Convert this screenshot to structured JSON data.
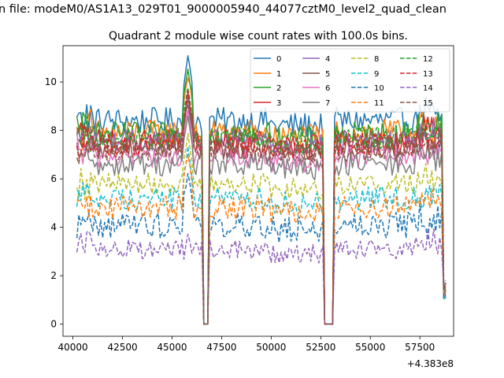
{
  "figure": {
    "suptitle": "n file: modeM0/AS1A13_029T01_9000005940_44077cztM0_level2_quad_clean",
    "offset_label": "+4.383e8"
  },
  "chart_data": {
    "type": "line",
    "title": "Quadrant 2 module wise count rates with 100.0s bins.",
    "xlabel": "",
    "ylabel": "",
    "xlim": [
      39500,
      59200
    ],
    "ylim": [
      -0.5,
      11.5
    ],
    "x_ticks": [
      40000,
      42500,
      45000,
      47500,
      50000,
      52500,
      55000,
      57500
    ],
    "x_tick_labels": [
      "40000",
      "42500",
      "45000",
      "47500",
      "50000",
      "52500",
      "55000",
      "57500"
    ],
    "y_ticks": [
      0,
      2,
      4,
      6,
      8,
      10
    ],
    "y_tick_labels": [
      "0",
      "2",
      "4",
      "6",
      "8",
      "10"
    ],
    "x_offset": 438300000,
    "x_start": 40200,
    "x_step": 100,
    "gaps": [
      [
        46600,
        46850
      ],
      [
        52700,
        53150
      ],
      [
        58700,
        58800
      ]
    ],
    "legend_position": "top-right",
    "legend_columns": 4,
    "series": [
      {
        "name": "0",
        "color": "#1f77b4",
        "dash": "solid",
        "level": 8.4,
        "noise": 0.25,
        "peak": 11.0
      },
      {
        "name": "1",
        "color": "#ff7f0e",
        "dash": "solid",
        "level": 7.9,
        "noise": 0.25,
        "peak": 10.3
      },
      {
        "name": "2",
        "color": "#2ca02c",
        "dash": "solid",
        "level": 7.8,
        "noise": 0.25,
        "peak": 10.6
      },
      {
        "name": "3",
        "color": "#d62728",
        "dash": "solid",
        "level": 7.5,
        "noise": 0.25,
        "peak": 9.6
      },
      {
        "name": "4",
        "color": "#9467bd",
        "dash": "solid",
        "level": 7.6,
        "noise": 0.2,
        "peak": 9.4
      },
      {
        "name": "5",
        "color": "#8c564b",
        "dash": "solid",
        "level": 7.3,
        "noise": 0.22,
        "peak": 9.2
      },
      {
        "name": "6",
        "color": "#e377c2",
        "dash": "solid",
        "level": 6.9,
        "noise": 0.2,
        "peak": 8.9
      },
      {
        "name": "7",
        "color": "#7f7f7f",
        "dash": "solid",
        "level": 6.6,
        "noise": 0.22,
        "peak": 8.6
      },
      {
        "name": "8",
        "color": "#bcbd22",
        "dash": "dashed",
        "level": 5.8,
        "noise": 0.2,
        "peak": 7.8
      },
      {
        "name": "9",
        "color": "#17becf",
        "dash": "dashed",
        "level": 5.2,
        "noise": 0.22,
        "peak": 7.2
      },
      {
        "name": "10",
        "color": "#1f77b4",
        "dash": "dashed",
        "level": 4.1,
        "noise": 0.25,
        "peak": 6.3
      },
      {
        "name": "11",
        "color": "#ff7f0e",
        "dash": "dashed",
        "level": 4.8,
        "noise": 0.22,
        "peak": 7.0
      },
      {
        "name": "12",
        "color": "#2ca02c",
        "dash": "dashed",
        "level": 7.7,
        "noise": 0.22,
        "peak": 9.7
      },
      {
        "name": "13",
        "color": "#d62728",
        "dash": "dashed",
        "level": 7.4,
        "noise": 0.22,
        "peak": 9.5
      },
      {
        "name": "14",
        "color": "#9467bd",
        "dash": "dashed",
        "level": 3.1,
        "noise": 0.18,
        "peak": 3.8
      },
      {
        "name": "15",
        "color": "#8c564b",
        "dash": "dashed",
        "level": 7.2,
        "noise": 0.22,
        "peak": 9.3
      }
    ]
  }
}
